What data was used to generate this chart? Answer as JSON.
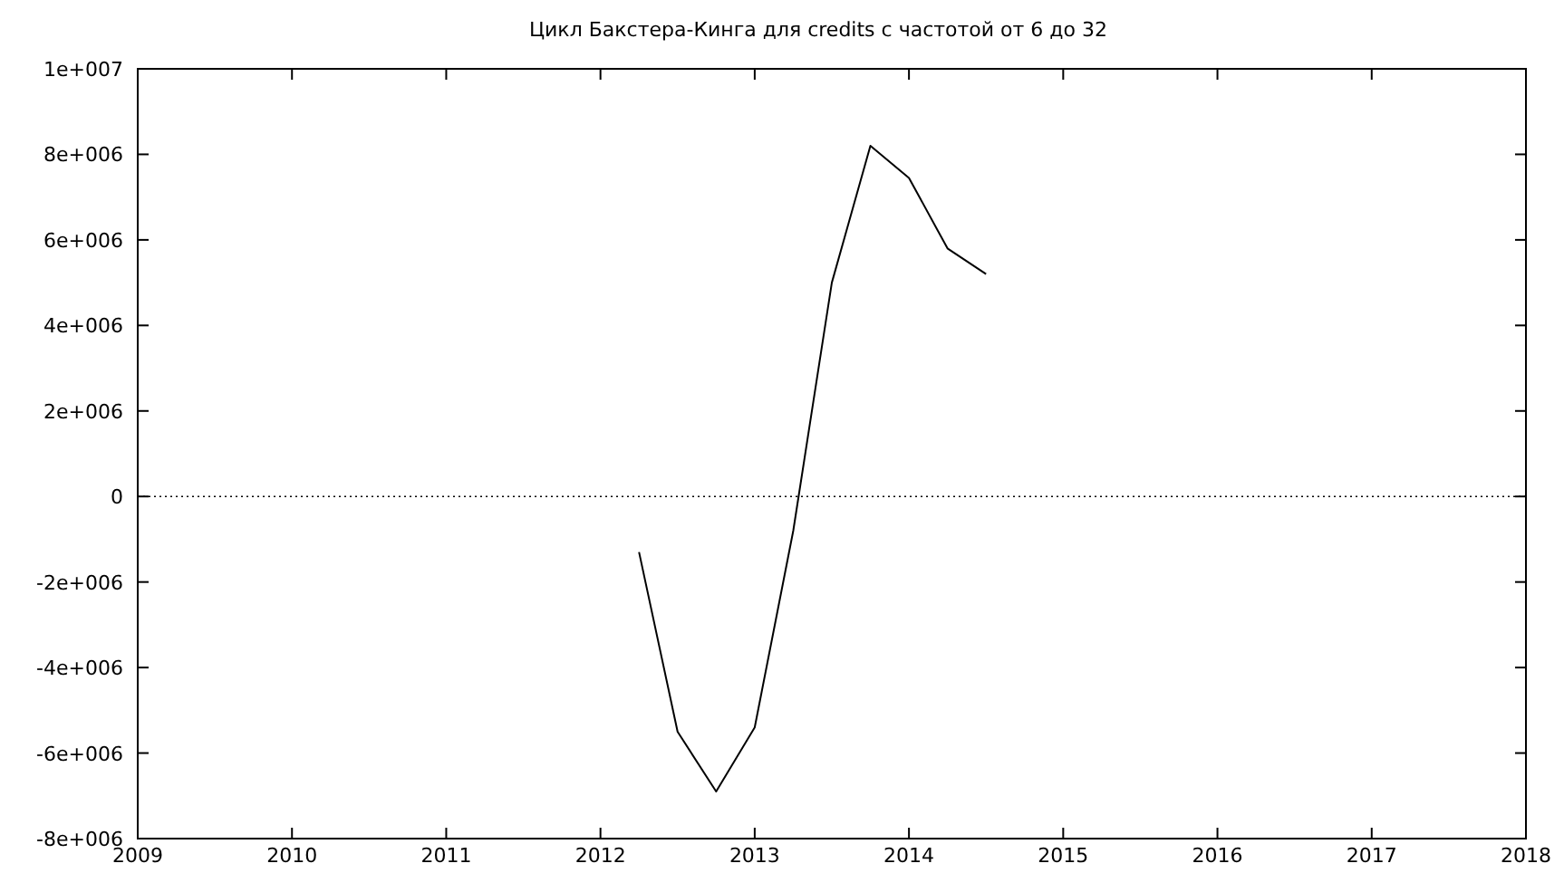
{
  "chart_data": {
    "type": "line",
    "title": "Цикл Бакстера-Кинга для credits с частотой от 6 до 32",
    "x": [
      2012.25,
      2012.5,
      2012.75,
      2013.0,
      2013.25,
      2013.5,
      2013.75,
      2014.0,
      2014.25,
      2014.5
    ],
    "series": [
      {
        "color": "#000000",
        "values": [
          -1300000,
          -5500000,
          -6900000,
          -5400000,
          -800000,
          5000000,
          8200000,
          7450000,
          5800000,
          5200000
        ]
      }
    ],
    "xlim": [
      2009,
      2018
    ],
    "xticks": [
      2009,
      2010,
      2011,
      2012,
      2013,
      2014,
      2015,
      2016,
      2017,
      2018
    ],
    "ylim": [
      -8000000,
      10000000
    ],
    "yticks": [
      {
        "value": -8000000,
        "label": "-8e+006"
      },
      {
        "value": -6000000,
        "label": "-6e+006"
      },
      {
        "value": -4000000,
        "label": "-4e+006"
      },
      {
        "value": -2000000,
        "label": "-2e+006"
      },
      {
        "value": 0,
        "label": "0"
      },
      {
        "value": 2000000,
        "label": "2e+006"
      },
      {
        "value": 4000000,
        "label": "4e+006"
      },
      {
        "value": 6000000,
        "label": "6e+006"
      },
      {
        "value": 8000000,
        "label": "8e+006"
      },
      {
        "value": 10000000,
        "label": "1e+007"
      }
    ],
    "ref_lines": [
      {
        "axis": "y",
        "value": 0,
        "line_style": "dotted",
        "color": "#000000"
      }
    ],
    "marker": "none",
    "line_style": "solid"
  }
}
